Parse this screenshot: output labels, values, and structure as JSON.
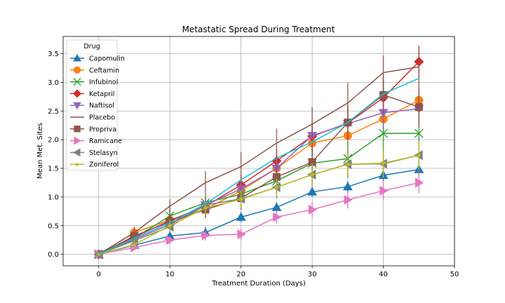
{
  "chart_data": {
    "type": "line",
    "title": "Metastatic Spread During Treatment",
    "xlabel": "Treatment Duration (Days)",
    "ylabel": "Mean Met. Sites",
    "xlim": [
      -5,
      50
    ],
    "ylim": [
      -0.2,
      3.8
    ],
    "xticks": [
      0,
      10,
      20,
      30,
      40,
      50
    ],
    "yticks": [
      0.0,
      0.5,
      1.0,
      1.5,
      2.0,
      2.5,
      3.0,
      3.5
    ],
    "ytick_labels": [
      "0.0",
      "0.5",
      "1.0",
      "1.5",
      "2.0",
      "2.5",
      "3.0",
      "3.5"
    ],
    "grid": true,
    "legend_title": "Drug",
    "legend_position": "top-left",
    "x": [
      0,
      5,
      10,
      15,
      20,
      25,
      30,
      35,
      40,
      45
    ],
    "series": [
      {
        "name": "Capomulin",
        "color": "#1f77b4",
        "marker": "triangle-up",
        "values": [
          0.0,
          0.16,
          0.32,
          0.38,
          0.65,
          0.82,
          1.09,
          1.18,
          1.38,
          1.48
        ],
        "errors": [
          0,
          0.08,
          0.09,
          0.1,
          0.09,
          0.09,
          0.09,
          0.1,
          0.1,
          0.1
        ]
      },
      {
        "name": "Ceftamin",
        "color": "#ff7f0e",
        "marker": "circle",
        "values": [
          0.0,
          0.38,
          0.6,
          0.79,
          1.11,
          1.5,
          1.94,
          2.07,
          2.36,
          2.69
        ],
        "errors": [
          0,
          0.1,
          0.12,
          0.13,
          0.15,
          0.18,
          0.18,
          0.2,
          0.25,
          0.25
        ]
      },
      {
        "name": "Infubinol",
        "color": "#2ca02c",
        "marker": "x",
        "values": [
          0.0,
          0.28,
          0.67,
          0.9,
          1.05,
          1.28,
          1.59,
          1.67,
          2.11,
          2.11
        ],
        "errors": [
          0,
          0.1,
          0.15,
          0.15,
          0.2,
          0.2,
          0.25,
          0.3,
          0.35,
          0.4
        ]
      },
      {
        "name": "Ketapril",
        "color": "#d62728",
        "marker": "diamond",
        "values": [
          0.0,
          0.3,
          0.59,
          0.84,
          1.21,
          1.63,
          2.06,
          2.29,
          2.73,
          3.36
        ],
        "errors": [
          0,
          0.1,
          0.12,
          0.15,
          0.18,
          0.2,
          0.25,
          0.3,
          0.3,
          0.28
        ]
      },
      {
        "name": "Naftisol",
        "color": "#9467bd",
        "marker": "triangle-down",
        "values": [
          0.0,
          0.26,
          0.52,
          0.86,
          1.14,
          1.5,
          2.07,
          2.28,
          2.47,
          2.54
        ],
        "errors": [
          0,
          0.1,
          0.12,
          0.15,
          0.15,
          0.2,
          0.2,
          0.25,
          0.3,
          0.3
        ]
      },
      {
        "name": "Placebo",
        "color": "#8c564b",
        "marker": "none",
        "values": [
          0.0,
          0.38,
          0.84,
          1.25,
          1.53,
          1.94,
          2.27,
          2.64,
          3.17,
          3.27
        ],
        "errors": [
          0,
          0.1,
          0.12,
          0.2,
          0.25,
          0.25,
          0.3,
          0.35,
          0.3,
          0.35
        ]
      },
      {
        "name": "Propriva",
        "color": "#8c564b",
        "marker": "square",
        "values": [
          0.0,
          0.32,
          0.57,
          0.78,
          0.98,
          1.35,
          1.61,
          2.3,
          2.78,
          2.57
        ],
        "errors": [
          0,
          0.1,
          0.12,
          0.15,
          0.2,
          0.2,
          0.25,
          0.3,
          0.35,
          0.35
        ]
      },
      {
        "name": "Ramicane",
        "color": "#e377c2",
        "marker": "triangle-right",
        "values": [
          0.0,
          0.12,
          0.25,
          0.33,
          0.35,
          0.65,
          0.78,
          0.95,
          1.11,
          1.25
        ],
        "errors": [
          0,
          0.05,
          0.07,
          0.09,
          0.1,
          0.12,
          0.13,
          0.15,
          0.16,
          0.18
        ]
      },
      {
        "name": "Stelasyn",
        "color": "#7f7f7f",
        "marker": "triangle-left",
        "values": [
          0.0,
          0.24,
          0.48,
          0.86,
          0.97,
          1.17,
          1.39,
          1.57,
          1.58,
          1.73
        ],
        "errors": [
          0,
          0.1,
          0.12,
          0.15,
          0.15,
          0.2,
          0.2,
          0.25,
          0.25,
          0.3
        ]
      },
      {
        "name": "Zoniferol",
        "color": "#bcbd22",
        "marker": "dot",
        "values": [
          0.0,
          0.17,
          0.5,
          0.81,
          0.96,
          1.17,
          1.39,
          1.57,
          1.59,
          1.73
        ],
        "errors": [
          0,
          0.08,
          0.1,
          0.12,
          0.15,
          0.15,
          0.2,
          0.2,
          0.25,
          0.25
        ]
      },
      {
        "name": "",
        "color": "#17becf",
        "marker": "none",
        "values": [
          0.0,
          0.28,
          0.55,
          0.88,
          1.3,
          1.68,
          1.96,
          2.3,
          2.8,
          3.07
        ],
        "errors": [
          0,
          0,
          0,
          0,
          0,
          0,
          0,
          0,
          0,
          0
        ]
      }
    ]
  }
}
